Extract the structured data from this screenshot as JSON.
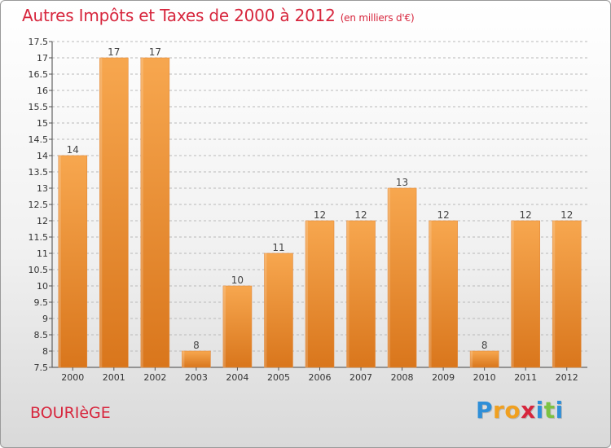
{
  "title": "Autres Impôts et Taxes de 2000 à 2012",
  "subtitle": "(en milliers d'€)",
  "commune": "BOURIèGE",
  "logo": {
    "letters": [
      "P",
      "r",
      "o",
      "x",
      "i",
      "t",
      "i"
    ],
    "colors": [
      "#2f8fd8",
      "#f0a020",
      "#f0a020",
      "#d7263d",
      "#2f8fd8",
      "#7cc242",
      "#2f8fd8"
    ]
  },
  "colors": {
    "title": "#d7263d",
    "bar": "#f19a3e",
    "bar_dark": "#d9761c",
    "grid": "#b9b9b9"
  },
  "chart_data": {
    "type": "bar",
    "title": "Autres Impôts et Taxes de 2000 à 2012",
    "subtitle": "(en milliers d'€)",
    "categories": [
      "2000",
      "2001",
      "2002",
      "2003",
      "2004",
      "2005",
      "2006",
      "2007",
      "2008",
      "2009",
      "2010",
      "2011",
      "2012"
    ],
    "values": [
      14,
      17,
      17,
      8,
      10,
      11,
      12,
      12,
      13,
      12,
      8,
      12,
      12
    ],
    "ylim": [
      7.5,
      17.5
    ],
    "yticks": [
      "7.5",
      "8",
      "8.5",
      "9",
      "9.5",
      "10",
      "10.5",
      "11",
      "11.5",
      "12",
      "12.5",
      "13",
      "13.5",
      "14",
      "14.5",
      "15",
      "15.5",
      "16",
      "16.5",
      "17",
      "17.5"
    ],
    "ytick_step": 0.5,
    "grid": true,
    "xlabel": "",
    "ylabel": ""
  }
}
